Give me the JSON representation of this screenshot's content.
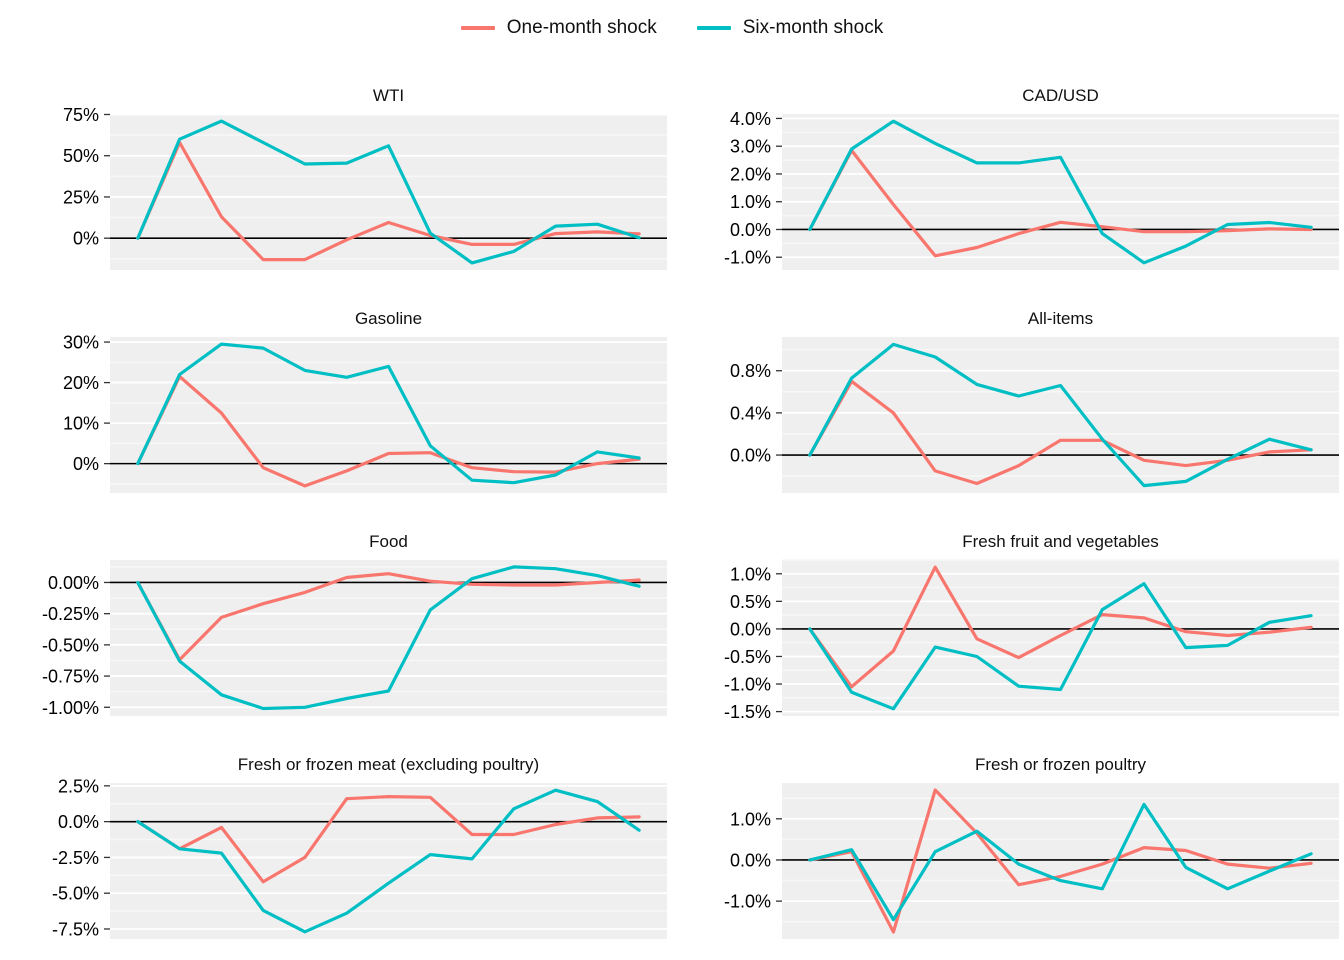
{
  "legend": {
    "items": [
      {
        "label": "One-month shock",
        "color": "#F8766D"
      },
      {
        "label": "Six-month shock",
        "color": "#00BFC4"
      }
    ],
    "position": "top-center"
  },
  "colors": {
    "one_month": "#F8766D",
    "six_month": "#00BFC4",
    "panel_bg": "#EFEFEF",
    "grid_major": "#FFFFFF",
    "grid_minor": "#F7F7F7",
    "zero_line": "#000000",
    "tick_mark": "#333333",
    "tick_text": "#000000"
  },
  "chart_data": [
    {
      "type": "line",
      "title": "WTI",
      "x": [
        0,
        1,
        2,
        3,
        4,
        5,
        6,
        7,
        8,
        9,
        10,
        11,
        12
      ],
      "xlabel": "",
      "ylabel": "",
      "xticks_shown": false,
      "grid": true,
      "ylim": [
        -19.3,
        75.3
      ],
      "yticks": {
        "values": [
          0,
          25,
          50,
          75
        ],
        "labels": [
          "0%",
          "25%",
          "50%",
          "75%"
        ]
      },
      "series": [
        {
          "name": "One-month shock",
          "color": "#F8766D",
          "values": [
            0,
            58,
            13,
            -13,
            -13,
            -1,
            9.5,
            1.6,
            -3.8,
            -3.8,
            2.8,
            3.8,
            2.6
          ]
        },
        {
          "name": "Six-month shock",
          "color": "#00BFC4",
          "values": [
            0,
            60,
            71,
            58,
            45,
            45.5,
            56,
            3,
            -15,
            -8,
            7.3,
            8.5,
            0.3
          ]
        }
      ]
    },
    {
      "type": "line",
      "title": "CAD/USD",
      "x": [
        0,
        1,
        2,
        3,
        4,
        5,
        6,
        7,
        8,
        9,
        10,
        11,
        12
      ],
      "xlabel": "",
      "ylabel": "",
      "xticks_shown": false,
      "grid": true,
      "ylim": [
        -1.46,
        4.16
      ],
      "yticks": {
        "values": [
          -1,
          0,
          1,
          2,
          3,
          4
        ],
        "labels": [
          "-1.0%",
          "0.0%",
          "1.0%",
          "2.0%",
          "3.0%",
          "4.0%"
        ]
      },
      "series": [
        {
          "name": "One-month shock",
          "color": "#F8766D",
          "values": [
            0,
            2.85,
            0.9,
            -0.95,
            -0.65,
            -0.15,
            0.26,
            0.1,
            -0.08,
            -0.08,
            -0.04,
            0.02,
            0
          ]
        },
        {
          "name": "Six-month shock",
          "color": "#00BFC4",
          "values": [
            0,
            2.9,
            3.9,
            3.1,
            2.4,
            2.4,
            2.6,
            -0.15,
            -1.2,
            -0.6,
            0.18,
            0.25,
            0.08
          ]
        }
      ]
    },
    {
      "type": "line",
      "title": "Gasoline",
      "x": [
        0,
        1,
        2,
        3,
        4,
        5,
        6,
        7,
        8,
        9,
        10,
        11,
        12
      ],
      "xlabel": "",
      "ylabel": "",
      "xticks_shown": false,
      "grid": true,
      "ylim": [
        -7.25,
        31.25
      ],
      "yticks": {
        "values": [
          0,
          10,
          20,
          30
        ],
        "labels": [
          "0%",
          "10%",
          "20%",
          "30%"
        ]
      },
      "series": [
        {
          "name": "One-month shock",
          "color": "#F8766D",
          "values": [
            0,
            21.5,
            12.5,
            -1,
            -5.5,
            -1.8,
            2.5,
            2.7,
            -1,
            -2,
            -2.1,
            0,
            1.1
          ]
        },
        {
          "name": "Six-month shock",
          "color": "#00BFC4",
          "values": [
            0,
            22,
            29.5,
            28.5,
            23,
            21.3,
            24,
            4.4,
            -4.1,
            -4.7,
            -2.8,
            2.9,
            1.4
          ]
        }
      ]
    },
    {
      "type": "line",
      "title": "All-items",
      "x": [
        0,
        1,
        2,
        3,
        4,
        5,
        6,
        7,
        8,
        9,
        10,
        11,
        12
      ],
      "xlabel": "",
      "ylabel": "",
      "xticks_shown": false,
      "grid": true,
      "ylim": [
        -0.36,
        1.12
      ],
      "yticks": {
        "values": [
          0,
          0.4,
          0.8
        ],
        "labels": [
          "0.0%",
          "0.4%",
          "0.8%"
        ]
      },
      "series": [
        {
          "name": "One-month shock",
          "color": "#F8766D",
          "values": [
            0,
            0.7,
            0.4,
            -0.15,
            -0.27,
            -0.1,
            0.14,
            0.14,
            -0.05,
            -0.1,
            -0.05,
            0.03,
            0.05
          ]
        },
        {
          "name": "Six-month shock",
          "color": "#00BFC4",
          "values": [
            0,
            0.73,
            1.05,
            0.93,
            0.67,
            0.56,
            0.66,
            0.15,
            -0.29,
            -0.25,
            -0.04,
            0.15,
            0.05
          ]
        }
      ]
    },
    {
      "type": "line",
      "title": "Food",
      "x": [
        0,
        1,
        2,
        3,
        4,
        5,
        6,
        7,
        8,
        9,
        10,
        11,
        12
      ],
      "xlabel": "",
      "ylabel": "",
      "xticks_shown": false,
      "grid": true,
      "ylim": [
        -1.07,
        0.18
      ],
      "yticks": {
        "values": [
          -1,
          -0.75,
          -0.5,
          -0.25,
          0
        ],
        "labels": [
          "-1.00%",
          "-0.75%",
          "-0.50%",
          "-0.25%",
          "0.00%"
        ]
      },
      "series": [
        {
          "name": "One-month shock",
          "color": "#F8766D",
          "values": [
            0,
            -0.62,
            -0.28,
            -0.17,
            -0.08,
            0.04,
            0.07,
            0.01,
            -0.015,
            -0.02,
            -0.02,
            0,
            0.02
          ]
        },
        {
          "name": "Six-month shock",
          "color": "#00BFC4",
          "values": [
            0,
            -0.63,
            -0.9,
            -1.01,
            -1,
            -0.93,
            -0.87,
            -0.22,
            0.03,
            0.125,
            0.11,
            0.055,
            -0.03
          ]
        }
      ]
    },
    {
      "type": "line",
      "title": "Fresh fruit and vegetables",
      "x": [
        0,
        1,
        2,
        3,
        4,
        5,
        6,
        7,
        8,
        9,
        10,
        11,
        12
      ],
      "xlabel": "",
      "ylabel": "",
      "xticks_shown": false,
      "grid": true,
      "ylim": [
        -1.58,
        1.25
      ],
      "yticks": {
        "values": [
          -1.5,
          -1,
          -0.5,
          0,
          0.5,
          1
        ],
        "labels": [
          "-1.5%",
          "-1.0%",
          "-0.5%",
          "0.0%",
          "0.5%",
          "1.0%"
        ]
      },
      "series": [
        {
          "name": "One-month shock",
          "color": "#F8766D",
          "values": [
            0,
            -1.05,
            -0.4,
            1.12,
            -0.18,
            -0.52,
            -0.12,
            0.26,
            0.2,
            -0.05,
            -0.12,
            -0.06,
            0.03
          ]
        },
        {
          "name": "Six-month shock",
          "color": "#00BFC4",
          "values": [
            0,
            -1.15,
            -1.45,
            -0.33,
            -0.5,
            -1.04,
            -1.1,
            0.35,
            0.82,
            -0.34,
            -0.3,
            0.12,
            0.24
          ]
        }
      ]
    },
    {
      "type": "line",
      "title": "Fresh or frozen meat (excluding poultry)",
      "x": [
        0,
        1,
        2,
        3,
        4,
        5,
        6,
        7,
        8,
        9,
        10,
        11,
        12
      ],
      "xlabel": "",
      "ylabel": "",
      "xticks_shown": false,
      "grid": true,
      "ylim": [
        -8.2,
        2.7
      ],
      "yticks": {
        "values": [
          -7.5,
          -5,
          -2.5,
          0,
          2.5
        ],
        "labels": [
          "-7.5%",
          "-5.0%",
          "-2.5%",
          "0.0%",
          "2.5%"
        ]
      },
      "series": [
        {
          "name": "One-month shock",
          "color": "#F8766D",
          "values": [
            0,
            -1.9,
            -0.4,
            -4.2,
            -2.5,
            1.6,
            1.75,
            1.7,
            -0.9,
            -0.9,
            -0.2,
            0.26,
            0.33
          ]
        },
        {
          "name": "Six-month shock",
          "color": "#00BFC4",
          "values": [
            0,
            -1.9,
            -2.2,
            -6.2,
            -7.7,
            -6.4,
            -4.3,
            -2.3,
            -2.6,
            0.9,
            2.2,
            1.4,
            -0.6
          ]
        }
      ]
    },
    {
      "type": "line",
      "title": "Fresh or frozen poultry",
      "x": [
        0,
        1,
        2,
        3,
        4,
        5,
        6,
        7,
        8,
        9,
        10,
        11,
        12
      ],
      "xlabel": "",
      "ylabel": "",
      "xticks_shown": false,
      "grid": true,
      "ylim": [
        -1.92,
        1.87
      ],
      "yticks": {
        "values": [
          -1,
          0,
          1
        ],
        "labels": [
          "-1.0%",
          "0.0%",
          "1.0%"
        ]
      },
      "series": [
        {
          "name": "One-month shock",
          "color": "#F8766D",
          "values": [
            0,
            0.2,
            -1.75,
            1.7,
            0.65,
            -0.6,
            -0.4,
            -0.1,
            0.3,
            0.23,
            -0.1,
            -0.2,
            -0.08
          ]
        },
        {
          "name": "Six-month shock",
          "color": "#00BFC4",
          "values": [
            0,
            0.25,
            -1.45,
            0.2,
            0.7,
            -0.1,
            -0.5,
            -0.7,
            1.35,
            -0.18,
            -0.7,
            -0.27,
            0.15
          ]
        }
      ]
    }
  ]
}
